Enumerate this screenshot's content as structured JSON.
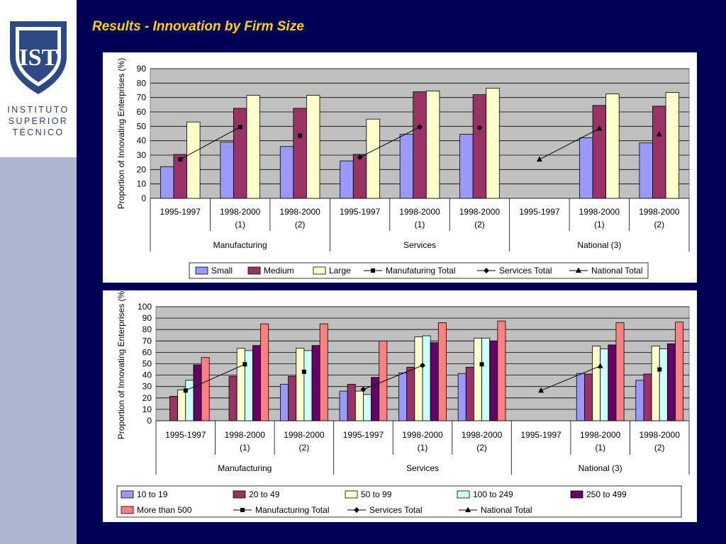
{
  "slide": {
    "title": "Results - Innovation by Firm Size"
  },
  "logo": {
    "emblem_text": "IST",
    "lines": [
      "INSTITUTO",
      "SUPERIOR",
      "TÉCNICO"
    ]
  },
  "colors": {
    "background": "#000055",
    "sidebar": "#aeb5d0",
    "title": "#ffd200",
    "plot_area": "#c0c0c0"
  },
  "chart_data": [
    {
      "type": "bar",
      "ylabel": "Proportion of Innovating Enterprises (%)",
      "ylim": [
        0,
        90
      ],
      "yticks": [
        0,
        10,
        20,
        30,
        40,
        50,
        60,
        70,
        80,
        90
      ],
      "grid": true,
      "legend_position": "bottom",
      "groups": [
        "Manufacturing",
        "Services",
        "National (3)"
      ],
      "categories": [
        [
          "1995-1997"
        ],
        [
          "1998-2000",
          "(1)"
        ],
        [
          "1998-2000",
          "(2)"
        ],
        [
          "1995-1997"
        ],
        [
          "1998-2000",
          "(1)"
        ],
        [
          "1998-2000",
          "(2)"
        ],
        [
          "1995-1997"
        ],
        [
          "1998-2000",
          "(1)"
        ],
        [
          "1998-2000",
          "(2)"
        ]
      ],
      "series": [
        {
          "name": "Small",
          "color": "#9999ff",
          "values": [
            22,
            39,
            36,
            26,
            44.5,
            44.5,
            null,
            42,
            38.5
          ]
        },
        {
          "name": "Medium",
          "color": "#993366",
          "values": [
            30.5,
            62.5,
            62.5,
            30.5,
            74,
            72,
            null,
            64.5,
            64
          ]
        },
        {
          "name": "Large",
          "color": "#ffffcc",
          "values": [
            53,
            71.5,
            71.5,
            55,
            74.5,
            76.5,
            null,
            72.5,
            73.5
          ]
        }
      ],
      "lines": [
        {
          "name": "Manufaturing Total",
          "marker": "square",
          "points": [
            [
              0,
              27
            ],
            [
              1,
              49.5
            ]
          ]
        },
        {
          "name": "Manufaturing Total",
          "marker": "square",
          "points": [
            [
              2,
              43.5
            ]
          ],
          "legend": false
        },
        {
          "name": "Services Total",
          "marker": "diamond",
          "points": [
            [
              3,
              28.5
            ],
            [
              4,
              49.5
            ]
          ]
        },
        {
          "name": "Services Total",
          "marker": "diamond",
          "points": [
            [
              5,
              49
            ]
          ],
          "legend": false
        },
        {
          "name": "National Total",
          "marker": "triangle",
          "points": [
            [
              6,
              27
            ],
            [
              7,
              48.5
            ]
          ]
        },
        {
          "name": "National Total",
          "marker": "triangle",
          "points": [
            [
              8,
              44.5
            ]
          ],
          "legend": false
        }
      ]
    },
    {
      "type": "bar",
      "ylabel": "Proportion of Innovating Enterprises (%)",
      "ylim": [
        0,
        100
      ],
      "yticks": [
        0,
        10,
        20,
        30,
        40,
        50,
        60,
        70,
        80,
        90,
        100
      ],
      "grid": true,
      "legend_position": "bottom",
      "groups": [
        "Manufacturing",
        "Services",
        "National (3)"
      ],
      "categories": [
        [
          "1995-1997"
        ],
        [
          "1998-2000",
          "(1)"
        ],
        [
          "1998-2000",
          "(2)"
        ],
        [
          "1995-1997"
        ],
        [
          "1998-2000",
          "(1)"
        ],
        [
          "1998-2000",
          "(2)"
        ],
        [
          "1995-1997"
        ],
        [
          "1998-2000",
          "(1)"
        ],
        [
          "1998-2000",
          "(2)"
        ]
      ],
      "series": [
        {
          "name": "10 to 19",
          "color": "#9999ff",
          "values": [
            null,
            null,
            32,
            26,
            42,
            41.5,
            null,
            41.5,
            35.5
          ]
        },
        {
          "name": "20 to 49",
          "color": "#993366",
          "values": [
            21.5,
            39,
            39,
            32,
            47,
            47,
            null,
            41,
            41
          ]
        },
        {
          "name": "50 to 99",
          "color": "#ffffcc",
          "values": [
            27,
            63.5,
            63.5,
            26,
            73.5,
            72.5,
            null,
            65.5,
            65.5
          ]
        },
        {
          "name": "100 to 249",
          "color": "#ccffff",
          "values": [
            35.5,
            61.5,
            61.5,
            23,
            74.5,
            72.5,
            null,
            63,
            63
          ]
        },
        {
          "name": "250 to 499",
          "color": "#660066",
          "values": [
            49,
            66,
            66,
            38,
            68.5,
            70,
            null,
            66.5,
            67.5
          ]
        },
        {
          "name": "More than 500",
          "color": "#ff8080",
          "values": [
            55.5,
            85,
            85,
            70,
            86,
            87.5,
            null,
            86,
            86.5
          ]
        }
      ],
      "lines": [
        {
          "name": "Manufacturing Total",
          "marker": "square",
          "points": [
            [
              0,
              26.5
            ],
            [
              1,
              49.5
            ]
          ]
        },
        {
          "name": "Manufacturing Total",
          "marker": "square",
          "points": [
            [
              2,
              43
            ]
          ],
          "legend": false
        },
        {
          "name": "Services Total",
          "marker": "diamond",
          "points": [
            [
              3,
              27.5
            ],
            [
              4,
              48.5
            ]
          ]
        },
        {
          "name": "Services Total",
          "marker": "square",
          "points": [
            [
              5,
              49.5
            ]
          ],
          "legend": false
        },
        {
          "name": "National Total",
          "marker": "triangle",
          "points": [
            [
              6,
              26.5
            ],
            [
              7,
              48
            ]
          ]
        },
        {
          "name": "National Total",
          "marker": "square",
          "points": [
            [
              8,
              45
            ]
          ],
          "legend": false
        }
      ]
    }
  ]
}
